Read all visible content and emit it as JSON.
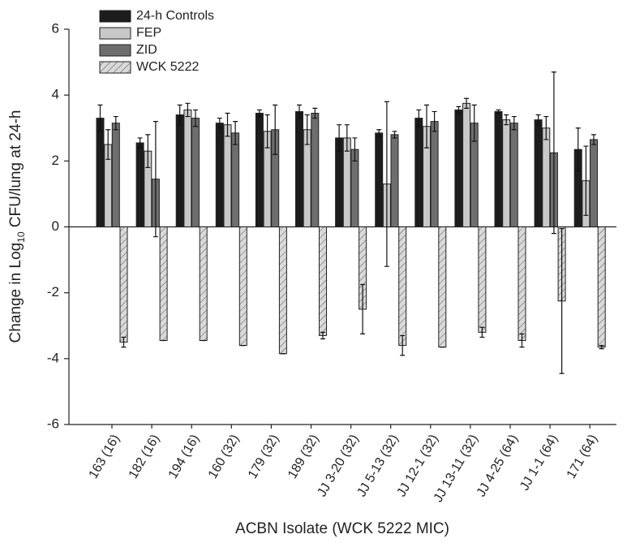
{
  "chart_data": {
    "type": "bar",
    "y_label": [
      "Change in Log",
      "10",
      " CFU/lung at 24-h"
    ],
    "x_label": "ACBN Isolate (WCK 5222 MIC)",
    "categories": [
      "163 (16)",
      "182 (16)",
      "194 (16)",
      "160 (32)",
      "179 (32)",
      "189 (32)",
      "JJ 3-20 (32)",
      "JJ 5-13 (32)",
      "JJ 12-1 (32)",
      "JJ 13-11 (32)",
      "JJ 4-25 (64)",
      "JJ 1-1 (64)",
      "171 (64)"
    ],
    "series": [
      {
        "name": "24-h Controls",
        "color": "#1c1c1c",
        "hatch": false,
        "values": [
          3.3,
          2.55,
          3.4,
          3.15,
          3.45,
          3.5,
          2.7,
          2.85,
          3.3,
          3.55,
          3.5,
          3.25,
          2.35
        ],
        "errors": [
          0.4,
          0.15,
          0.3,
          0.15,
          0.1,
          0.2,
          0.4,
          0.1,
          0.25,
          0.1,
          0.05,
          0.15,
          0.65
        ]
      },
      {
        "name": "FEP",
        "color": "#c8c8c8",
        "hatch": false,
        "values": [
          2.5,
          2.3,
          3.55,
          3.1,
          2.9,
          2.95,
          2.7,
          1.3,
          3.05,
          3.75,
          3.25,
          3.0,
          1.4
        ],
        "errors": [
          0.45,
          0.5,
          0.2,
          0.35,
          0.5,
          0.45,
          0.4,
          2.5,
          0.65,
          0.15,
          0.15,
          0.35,
          1.05
        ]
      },
      {
        "name": "ZID",
        "color": "#6e6e6e",
        "hatch": false,
        "values": [
          3.15,
          1.45,
          3.3,
          2.85,
          2.95,
          3.45,
          2.35,
          2.8,
          3.2,
          3.15,
          3.15,
          2.25,
          2.65
        ],
        "errors": [
          0.2,
          1.75,
          0.25,
          0.35,
          0.75,
          0.15,
          0.35,
          0.1,
          0.3,
          0.55,
          0.2,
          2.45,
          0.15
        ]
      },
      {
        "name": "WCK 5222",
        "color": "#d9d9d9",
        "hatch": true,
        "values": [
          -3.5,
          -3.45,
          -3.45,
          -3.6,
          -3.85,
          -3.3,
          -2.5,
          -3.6,
          -3.65,
          -3.2,
          -3.45,
          -2.25,
          -3.65
        ],
        "errors": [
          0.15,
          0,
          0,
          0,
          0,
          0.1,
          0.75,
          0.3,
          0,
          0.15,
          0.2,
          2.2,
          0.05
        ]
      }
    ],
    "ylim": [
      -6,
      6
    ],
    "yticks": [
      -6,
      -4,
      -2,
      0,
      2,
      4,
      6
    ],
    "grid": false,
    "legend": "upper left"
  }
}
